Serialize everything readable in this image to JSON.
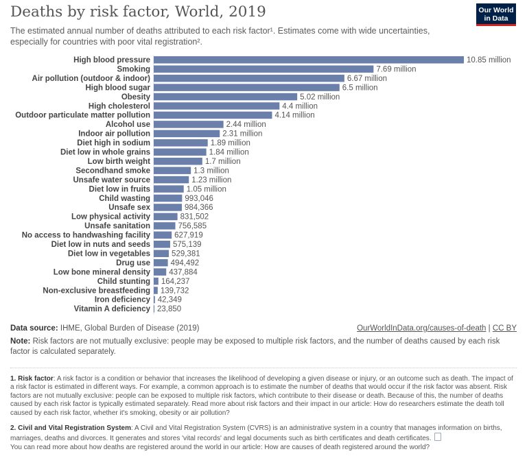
{
  "header": {
    "title": "Deaths by risk factor, World, 2019",
    "subtitle": "The estimated annual number of deaths attributed to each risk factor¹. Estimates come with wide uncertainties, especially for countries with poor vital registration².",
    "logo_line1": "Our World",
    "logo_line2": "in Data"
  },
  "colors": {
    "bar": "#6b7fab",
    "logo_bg": "#002147",
    "logo_accent": "#ce261e"
  },
  "chart_data": {
    "type": "bar",
    "orientation": "horizontal",
    "title": "Deaths by risk factor, World, 2019",
    "xlim": [
      0,
      10850000
    ],
    "grid": false,
    "categories": [
      "High blood pressure",
      "Smoking",
      "Air pollution (outdoor & indoor)",
      "High blood sugar",
      "Obesity",
      "High cholesterol",
      "Outdoor particulate matter pollution",
      "Alcohol use",
      "Indoor air pollution",
      "Diet high in sodium",
      "Diet low in whole grains",
      "Low birth weight",
      "Secondhand smoke",
      "Unsafe water source",
      "Diet low in fruits",
      "Child wasting",
      "Unsafe sex",
      "Low physical activity",
      "Unsafe sanitation",
      "No access to handwashing facility",
      "Diet low in nuts and seeds",
      "Diet low in vegetables",
      "Drug use",
      "Low bone mineral density",
      "Child stunting",
      "Non-exclusive breastfeeding",
      "Iron deficiency",
      "Vitamin A deficiency"
    ],
    "values": [
      10850000,
      7690000,
      6670000,
      6500000,
      5020000,
      4400000,
      4140000,
      2440000,
      2310000,
      1890000,
      1840000,
      1700000,
      1300000,
      1230000,
      1050000,
      993046,
      984366,
      831502,
      756585,
      627919,
      575139,
      529381,
      494492,
      437884,
      164237,
      139732,
      42349,
      23850
    ],
    "value_labels": [
      "10.85 million",
      "7.69 million",
      "6.67 million",
      "6.5 million",
      "5.02 million",
      "4.4 million",
      "4.14 million",
      "2.44 million",
      "2.31 million",
      "1.89 million",
      "1.84 million",
      "1.7 million",
      "1.3 million",
      "1.23 million",
      "1.05 million",
      "993,046",
      "984,366",
      "831,502",
      "756,585",
      "627,919",
      "575,139",
      "529,381",
      "494,492",
      "437,884",
      "164,237",
      "139,732",
      "42,349",
      "23,850"
    ]
  },
  "footer": {
    "source_label": "Data source:",
    "source_text": "IHME, Global Burden of Disease (2019)",
    "link_text": "OurWorldInData.org/causes-of-death",
    "separator": "|",
    "license_text": "CC BY",
    "note_label": "Note:",
    "note_text": "Risk factors are not mutually exclusive: people may be exposed to multiple risk factors, and the number of deaths caused by each risk factor is calculated separately.",
    "fn1_label": "1. Risk factor",
    "fn1_text": ": A risk factor is a condition or behavior that increases the likelihood of developing a given disease or injury, or an outcome such as death. The impact of a risk factor is estimated in different ways. For example, a common approach is to estimate the number of deaths that would occur if the risk factor was absent. Risk factors are not mutually exclusive: people can be exposed to multiple risk factors, which contribute to their disease or death. Because of this, the number of deaths caused by each risk factor is typically estimated separately. Read more about risk factors and their impact in our article: How do researchers estimate the death toll caused by each risk factor, whether it's smoking, obesity or air pollution?",
    "fn2_label": "2. Civil and Vital Registration System",
    "fn2_text": ": A Civil and Vital Registration System (CVRS) is an administrative system in a country that manages information on births, marriages, deaths and divorces. It generates and stores 'vital records' and legal documents such as birth certificates and death certificates.",
    "fn2_text2": "You can read more about how deaths are registered around the world in our article: How are causes of death registered around the world?"
  }
}
